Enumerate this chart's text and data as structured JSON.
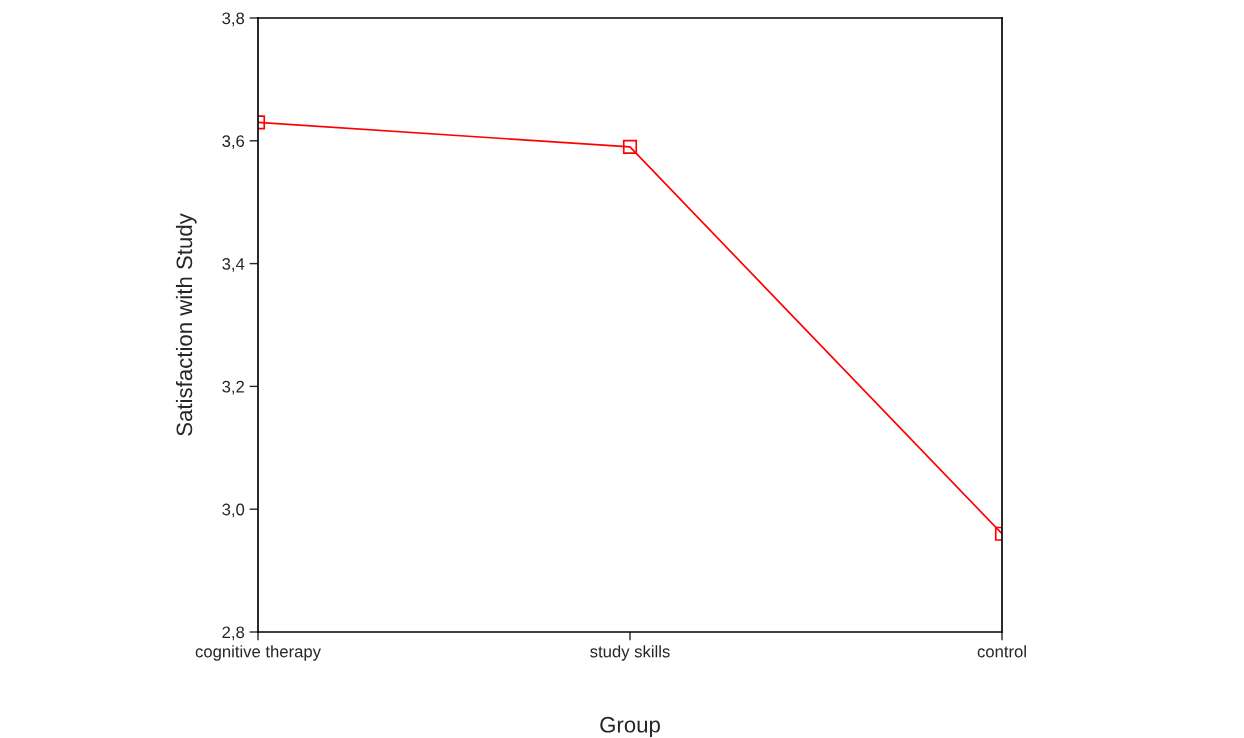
{
  "chart_data": {
    "type": "line",
    "xlabel": "Group",
    "ylabel": "Satisfaction with Study",
    "categories": [
      "cognitive therapy",
      "study skills",
      "control"
    ],
    "series": [
      {
        "color": "#ff0000",
        "values": [
          3.63,
          3.59,
          2.96
        ]
      }
    ],
    "ylim": [
      2.8,
      3.8
    ],
    "yticks": [
      {
        "value": 2.8,
        "label": "2,8"
      },
      {
        "value": 3.0,
        "label": "3,0"
      },
      {
        "value": 3.2,
        "label": "3,2"
      },
      {
        "value": 3.4,
        "label": "3,4"
      },
      {
        "value": 3.6,
        "label": "3,6"
      },
      {
        "value": 3.8,
        "label": "3,8"
      }
    ],
    "marker": "square",
    "line_style": "solid",
    "grid": false
  }
}
